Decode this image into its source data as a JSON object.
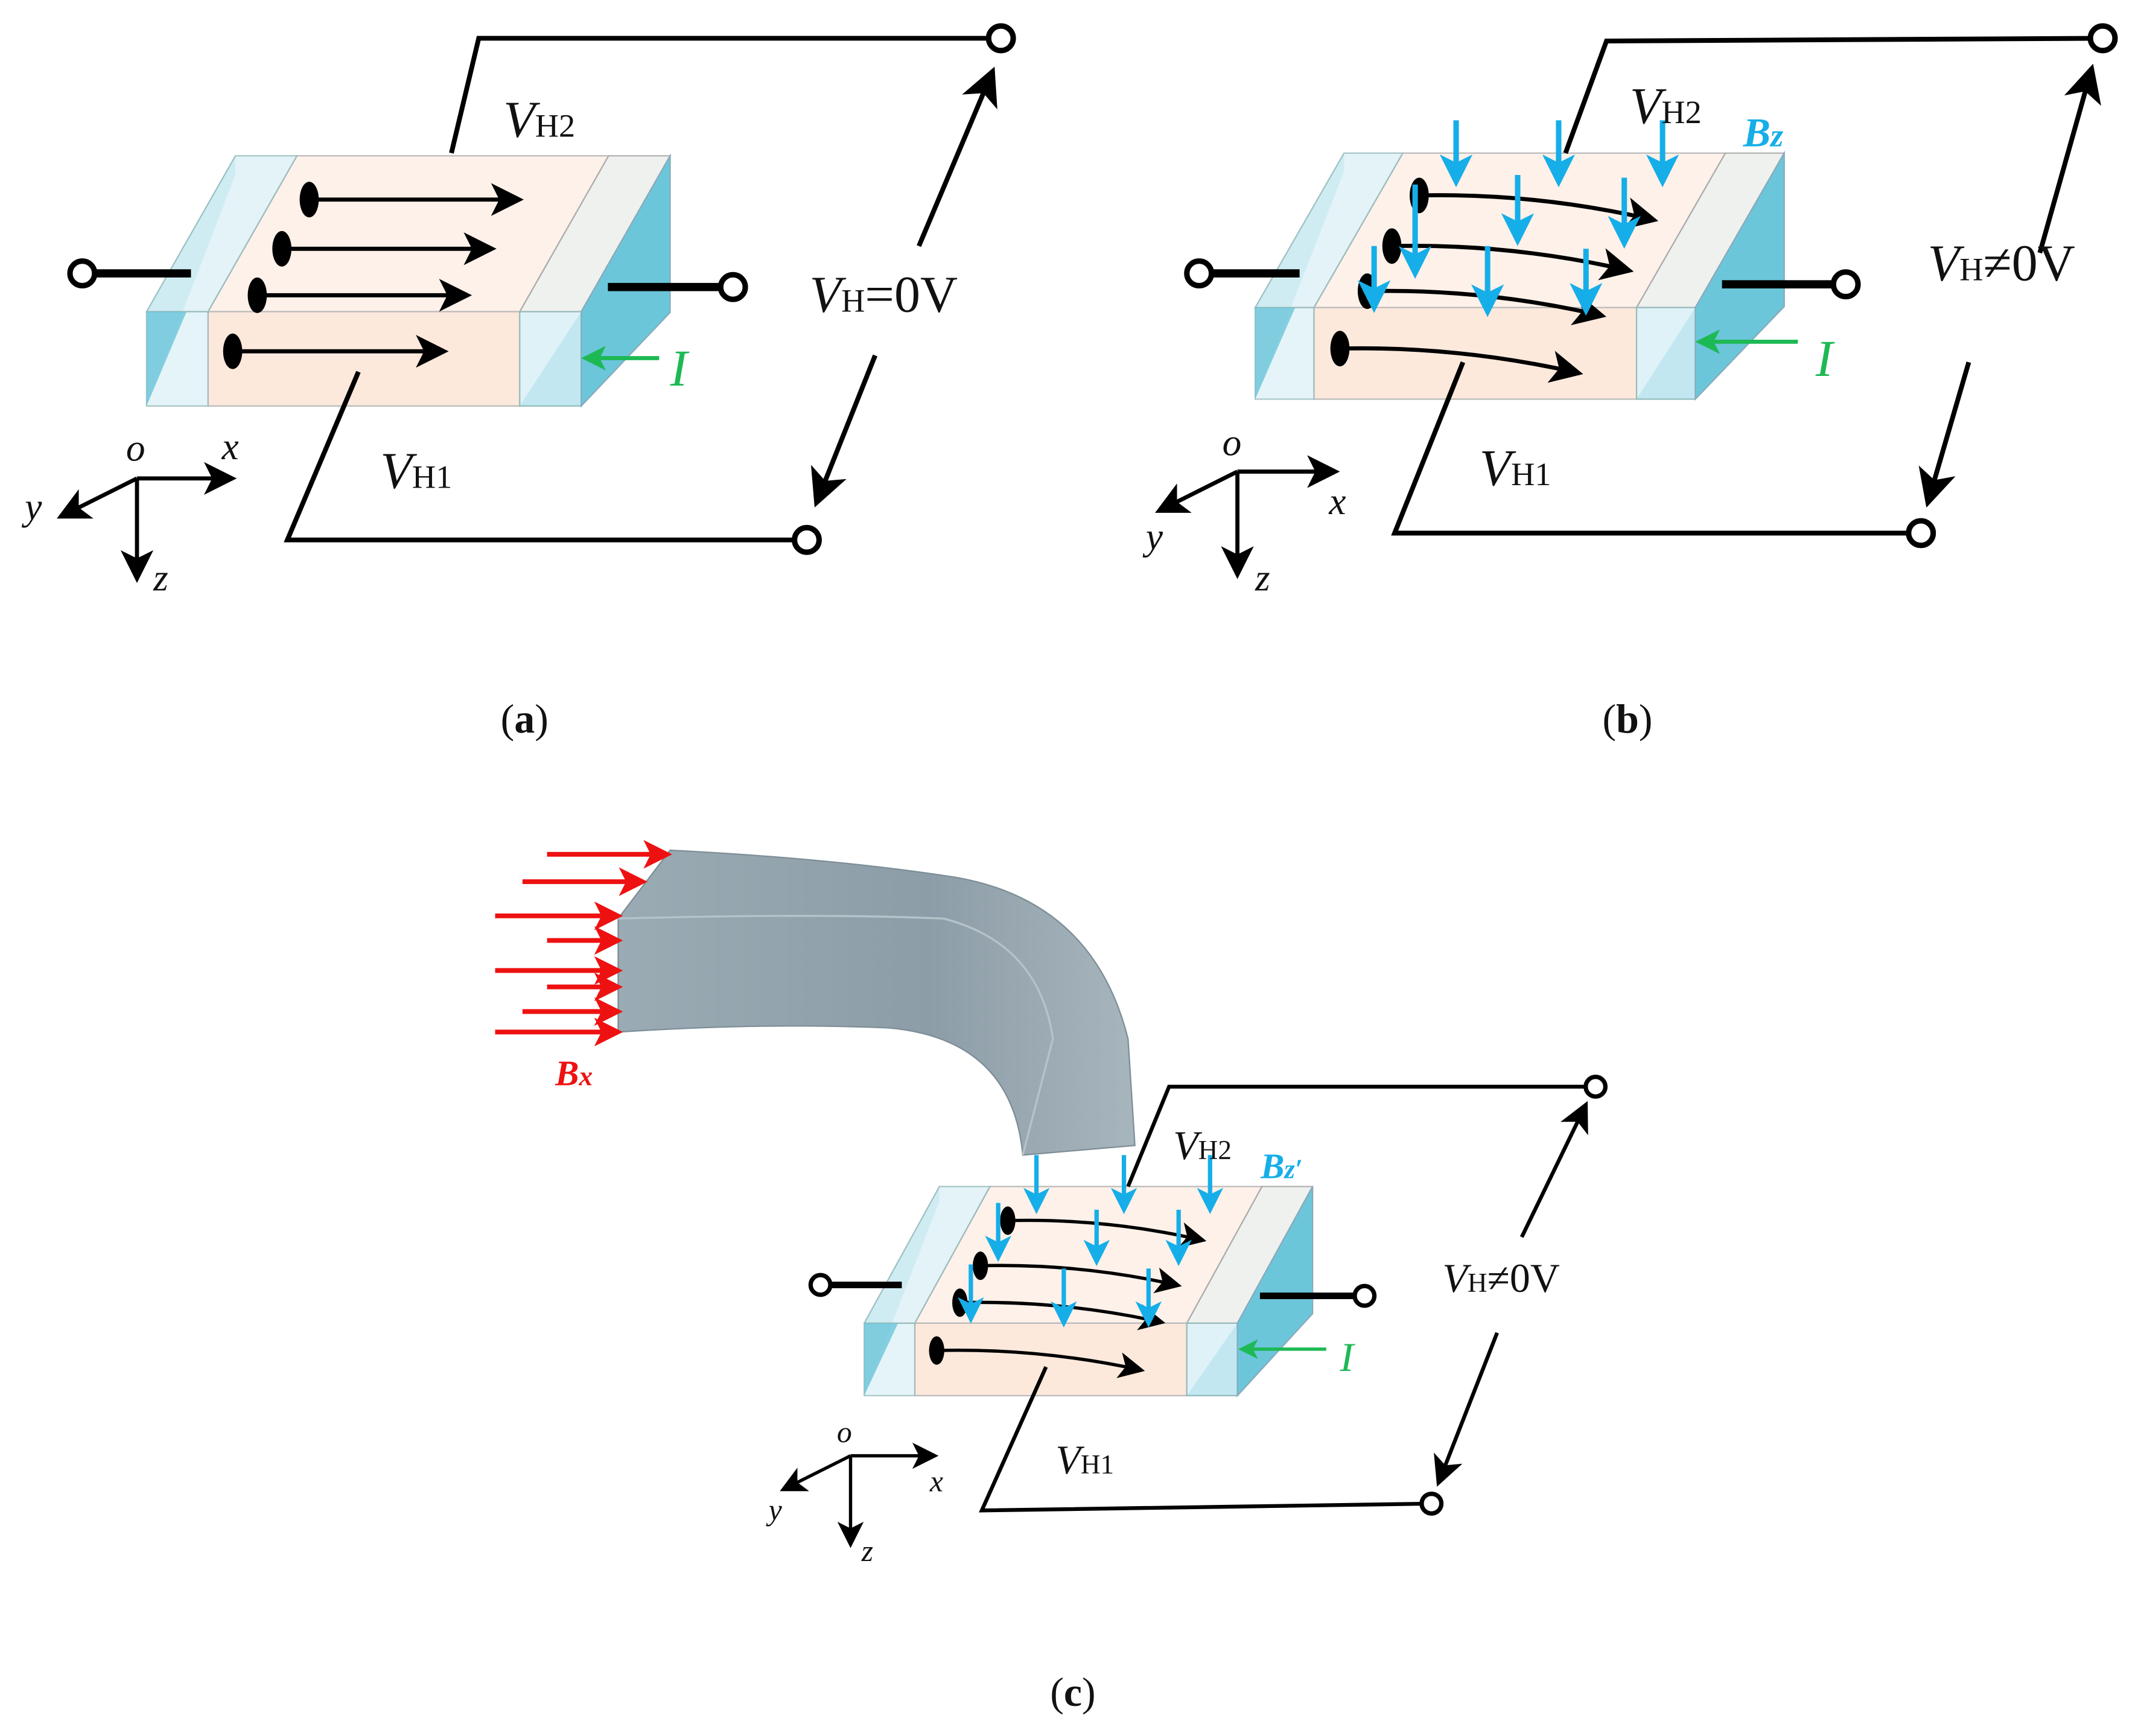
{
  "colors": {
    "wire": "#000000",
    "electrode_blue": "#6cc6da",
    "electrode_light": "#dff2f7",
    "hall_plate": "#fde9dc",
    "current": "#1db954",
    "field_z": "#16aee8",
    "field_x": "#ee1111",
    "concentrator": "#8e9ea8"
  },
  "panels": [
    {
      "caption_open": "(",
      "caption_letter": "a",
      "caption_close": ")",
      "vh2": {
        "v": "V",
        "sub": "H2"
      },
      "vh1": {
        "v": "V",
        "sub": "H1"
      },
      "vh": {
        "v": "V",
        "sub": "H",
        "rest": "=0V"
      },
      "current": "I",
      "axes": {
        "o": "o",
        "x": "x",
        "y": "y",
        "z": "z"
      }
    },
    {
      "caption_open": "(",
      "caption_letter": "b",
      "caption_close": ")",
      "vh2": {
        "v": "V",
        "sub": "H2"
      },
      "vh1": {
        "v": "V",
        "sub": "H1"
      },
      "vh": {
        "v": "V",
        "sub": "H",
        "rest": "≠0V"
      },
      "field": {
        "b": "B",
        "sub": "z"
      },
      "current": "I",
      "axes": {
        "o": "o",
        "x": "x",
        "y": "y",
        "z": "z"
      }
    },
    {
      "caption_open": "(",
      "caption_letter": "c",
      "caption_close": ")",
      "vh2": {
        "v": "V",
        "sub": "H2"
      },
      "vh1": {
        "v": "V",
        "sub": "H1"
      },
      "vh": {
        "v": "V",
        "sub": "H",
        "rest": "≠0V"
      },
      "field": {
        "b": "B",
        "sub": "z′"
      },
      "field_x": {
        "b": "B",
        "sub": "x"
      },
      "current": "I",
      "axes": {
        "o": "o",
        "x": "x",
        "y": "y",
        "z": "z"
      }
    }
  ]
}
